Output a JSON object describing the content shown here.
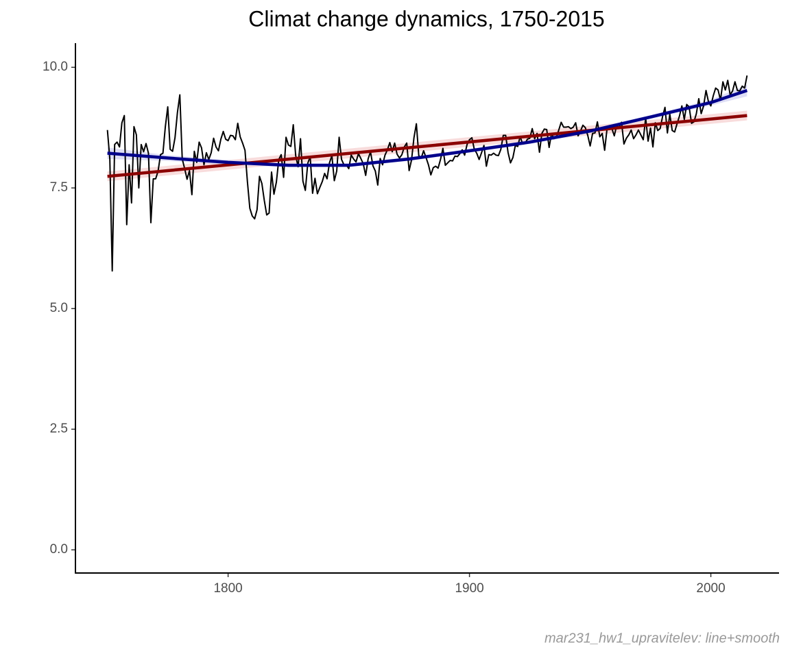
{
  "chart_data": {
    "type": "line",
    "title": "Climat change dynamics, 1750-2015",
    "caption": "mar231_hw1_upravitelev: line+smooth",
    "xlim": [
      1736.75,
      2028.25
    ],
    "ylim": [
      -0.48,
      10.5
    ],
    "xticks": [
      1800,
      1900,
      2000
    ],
    "yticks": [
      {
        "value": 0,
        "label": "0.0"
      },
      2.5,
      {
        "value": 5,
        "label": "5.0"
      },
      7.5,
      {
        "value": 10,
        "label": "10.0"
      }
    ],
    "grid": false,
    "series": [
      {
        "color": "#000000",
        "x": [
          1750,
          1751,
          1752,
          1753,
          1754,
          1755,
          1756,
          1757,
          1758,
          1759,
          1760,
          1761,
          1762,
          1763,
          1764,
          1765,
          1766,
          1767,
          1768,
          1769,
          1770,
          1771,
          1772,
          1773,
          1774,
          1775,
          1776,
          1777,
          1778,
          1779,
          1780,
          1781,
          1782,
          1783,
          1784,
          1785,
          1786,
          1787,
          1788,
          1789,
          1790,
          1791,
          1792,
          1793,
          1794,
          1795,
          1796,
          1797,
          1798,
          1799,
          1800,
          1801,
          1802,
          1803,
          1804,
          1805,
          1806,
          1807,
          1808,
          1809,
          1810,
          1811,
          1812,
          1813,
          1814,
          1815,
          1816,
          1817,
          1818,
          1819,
          1820,
          1821,
          1822,
          1823,
          1824,
          1825,
          1826,
          1827,
          1828,
          1829,
          1830,
          1831,
          1832,
          1833,
          1834,
          1835,
          1836,
          1837,
          1838,
          1839,
          1840,
          1841,
          1842,
          1843,
          1844,
          1845,
          1846,
          1847,
          1848,
          1849,
          1850,
          1851,
          1852,
          1853,
          1854,
          1855,
          1856,
          1857,
          1858,
          1859,
          1860,
          1861,
          1862,
          1863,
          1864,
          1865,
          1866,
          1867,
          1868,
          1869,
          1870,
          1871,
          1872,
          1873,
          1874,
          1875,
          1876,
          1877,
          1878,
          1879,
          1880,
          1881,
          1882,
          1883,
          1884,
          1885,
          1886,
          1887,
          1888,
          1889,
          1890,
          1891,
          1892,
          1893,
          1894,
          1895,
          1896,
          1897,
          1898,
          1899,
          1900,
          1901,
          1902,
          1903,
          1904,
          1905,
          1906,
          1907,
          1908,
          1909,
          1910,
          1911,
          1912,
          1913,
          1914,
          1915,
          1916,
          1917,
          1918,
          1919,
          1920,
          1921,
          1922,
          1923,
          1924,
          1925,
          1926,
          1927,
          1928,
          1929,
          1930,
          1931,
          1932,
          1933,
          1934,
          1935,
          1936,
          1937,
          1938,
          1939,
          1940,
          1941,
          1942,
          1943,
          1944,
          1945,
          1946,
          1947,
          1948,
          1949,
          1950,
          1951,
          1952,
          1953,
          1954,
          1955,
          1956,
          1957,
          1958,
          1959,
          1960,
          1961,
          1962,
          1963,
          1964,
          1965,
          1966,
          1967,
          1968,
          1969,
          1970,
          1971,
          1972,
          1973,
          1974,
          1975,
          1976,
          1977,
          1978,
          1979,
          1980,
          1981,
          1982,
          1983,
          1984,
          1985,
          1986,
          1987,
          1988,
          1989,
          1990,
          1991,
          1992,
          1993,
          1994,
          1995,
          1996,
          1997,
          1998,
          1999,
          2000,
          2001,
          2002,
          2003,
          2004,
          2005,
          2006,
          2007,
          2008,
          2009,
          2010,
          2011,
          2012,
          2013,
          2014,
          2015
        ],
        "values": [
          8.7,
          8.1,
          5.78,
          8.4,
          8.45,
          8.35,
          8.85,
          9.0,
          6.74,
          7.98,
          7.19,
          8.77,
          8.6,
          7.5,
          8.4,
          8.25,
          8.42,
          8.22,
          6.78,
          7.69,
          7.69,
          7.85,
          8.19,
          8.22,
          8.77,
          9.18,
          8.3,
          8.26,
          8.54,
          9.06,
          9.43,
          8.1,
          7.9,
          7.68,
          7.86,
          7.36,
          8.26,
          8.03,
          8.45,
          8.33,
          7.98,
          8.23,
          8.09,
          8.23,
          8.53,
          8.35,
          8.27,
          8.51,
          8.67,
          8.51,
          8.48,
          8.59,
          8.58,
          8.5,
          8.84,
          8.56,
          8.43,
          8.28,
          7.63,
          7.08,
          6.92,
          6.86,
          7.05,
          7.74,
          7.59,
          7.24,
          6.94,
          6.98,
          7.83,
          7.37,
          7.62,
          8.09,
          8.19,
          7.72,
          8.55,
          8.39,
          8.36,
          8.81,
          8.17,
          7.94,
          8.52,
          7.64,
          7.45,
          8.01,
          8.15,
          7.39,
          7.7,
          7.38,
          7.51,
          7.63,
          7.8,
          7.69,
          8.02,
          8.17,
          7.65,
          7.85,
          8.55,
          8.09,
          7.98,
          7.98,
          7.9,
          8.18,
          8.1,
          8.04,
          8.21,
          8.11,
          8.0,
          7.76,
          8.1,
          8.25,
          7.96,
          7.85,
          7.56,
          8.11,
          7.98,
          8.18,
          8.29,
          8.44,
          8.25,
          8.43,
          8.2,
          8.12,
          8.19,
          8.35,
          8.43,
          7.86,
          8.08,
          8.54,
          8.83,
          8.17,
          8.12,
          8.27,
          8.13,
          7.98,
          7.77,
          7.92,
          7.95,
          7.91,
          8.09,
          8.32,
          7.97,
          8.02,
          8.07,
          8.06,
          8.16,
          8.15,
          8.21,
          8.29,
          8.18,
          8.4,
          8.5,
          8.54,
          8.3,
          8.22,
          8.09,
          8.23,
          8.38,
          7.95,
          8.19,
          8.18,
          8.22,
          8.18,
          8.17,
          8.3,
          8.59,
          8.59,
          8.23,
          8.02,
          8.13,
          8.38,
          8.36,
          8.57,
          8.41,
          8.42,
          8.51,
          8.53,
          8.73,
          8.52,
          8.63,
          8.24,
          8.63,
          8.72,
          8.71,
          8.34,
          8.63,
          8.52,
          8.55,
          8.7,
          8.86,
          8.76,
          8.76,
          8.77,
          8.73,
          8.76,
          8.85,
          8.58,
          8.68,
          8.8,
          8.75,
          8.59,
          8.37,
          8.63,
          8.64,
          8.87,
          8.56,
          8.63,
          8.28,
          8.73,
          8.77,
          8.73,
          8.58,
          8.8,
          8.75,
          8.86,
          8.41,
          8.53,
          8.6,
          8.7,
          8.52,
          8.6,
          8.7,
          8.6,
          8.5,
          8.95,
          8.47,
          8.74,
          8.35,
          8.85,
          8.69,
          8.73,
          8.98,
          9.17,
          8.64,
          9.03,
          8.69,
          8.66,
          8.83,
          8.99,
          9.2,
          8.92,
          9.23,
          9.18,
          8.84,
          8.87,
          9.04,
          9.35,
          9.04,
          9.2,
          9.52,
          9.29,
          9.2,
          9.41,
          9.57,
          9.53,
          9.32,
          9.7,
          9.53,
          9.73,
          9.43,
          9.51,
          9.7,
          9.52,
          9.51,
          9.61,
          9.57,
          9.83
        ]
      },
      {
        "color": "#8b0000",
        "x": [
          1750,
          2015
        ],
        "values": [
          7.74,
          9.0
        ],
        "lower": [
          7.64,
          8.9
        ],
        "upper": [
          7.84,
          9.1
        ],
        "band_color": "#f4c4c4"
      },
      {
        "color": "#00008b",
        "x": [
          1750,
          1775,
          1800,
          1825,
          1850,
          1875,
          1900,
          1925,
          1950,
          1975,
          2000,
          2015
        ],
        "values": [
          8.22,
          8.12,
          8.03,
          7.97,
          7.97,
          8.1,
          8.27,
          8.45,
          8.68,
          8.97,
          9.27,
          9.52
        ],
        "lower": [
          8.1,
          8.06,
          7.98,
          7.93,
          7.93,
          8.06,
          8.23,
          8.41,
          8.64,
          8.93,
          9.21,
          9.4
        ],
        "upper": [
          8.34,
          8.18,
          8.08,
          8.01,
          8.01,
          8.14,
          8.31,
          8.49,
          8.72,
          9.01,
          9.33,
          9.64
        ],
        "band_color": "#c8c8ee"
      }
    ]
  }
}
